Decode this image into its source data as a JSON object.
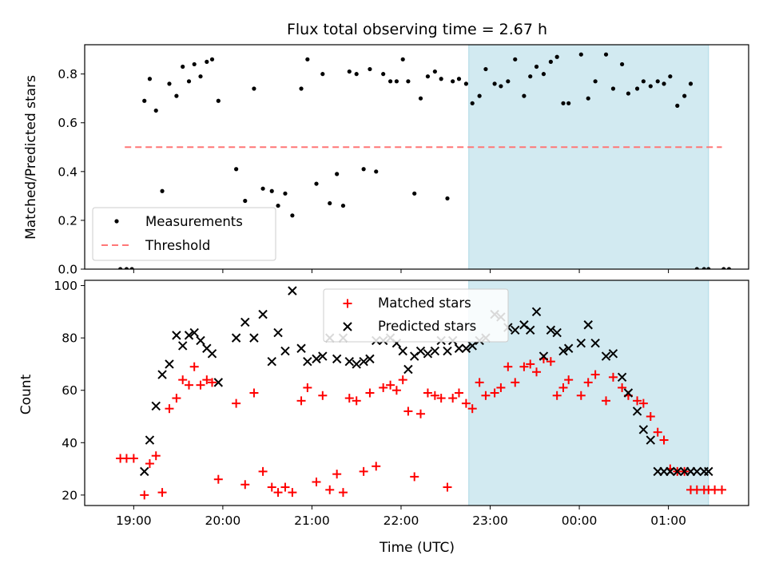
{
  "title": "Flux total observing time = 2.67 h",
  "colors": {
    "measurement": "#000000",
    "threshold": "#ff7777",
    "matched": "#ff0000",
    "predicted": "#000000",
    "span": "#add8e6"
  },
  "chart_data": [
    {
      "type": "scatter",
      "title": "Flux total observing time = 2.67 h",
      "xlabel": "",
      "ylabel": "Matched/Predicted stars",
      "xlim": [
        18.45,
        25.9
      ],
      "ylim": [
        0,
        0.92
      ],
      "yticks": [
        0.0,
        0.2,
        0.4,
        0.6,
        0.8
      ],
      "ytick_labels": [
        "0.0",
        "0.2",
        "0.4",
        "0.6",
        "0.8"
      ],
      "highlight_span": [
        22.76,
        25.45
      ],
      "legend_position": "lower-left",
      "series": [
        {
          "name": "Measurements",
          "marker": "dot",
          "x": [
            18.85,
            18.92,
            18.98,
            19.12,
            19.18,
            19.25,
            19.32,
            19.4,
            19.48,
            19.55,
            19.62,
            19.68,
            19.75,
            19.82,
            19.88,
            19.95,
            20.15,
            20.25,
            20.35,
            20.45,
            20.55,
            20.62,
            20.7,
            20.78,
            20.88,
            20.95,
            21.05,
            21.12,
            21.2,
            21.28,
            21.35,
            21.42,
            21.5,
            21.58,
            21.65,
            21.72,
            21.8,
            21.88,
            21.95,
            22.02,
            22.08,
            22.15,
            22.22,
            22.3,
            22.38,
            22.45,
            22.52,
            22.58,
            22.65,
            22.73,
            22.8,
            22.88,
            22.95,
            23.05,
            23.12,
            23.2,
            23.28,
            23.38,
            23.45,
            23.52,
            23.6,
            23.68,
            23.75,
            23.82,
            23.88,
            24.02,
            24.1,
            24.18,
            24.3,
            24.38,
            24.48,
            24.55,
            24.65,
            24.72,
            24.8,
            24.88,
            24.95,
            25.02,
            25.1,
            25.18,
            25.25,
            25.32,
            25.4,
            25.45,
            25.62,
            25.68
          ],
          "y": [
            0.0,
            0.0,
            0.0,
            0.69,
            0.78,
            0.65,
            0.32,
            0.76,
            0.71,
            0.83,
            0.77,
            0.84,
            0.79,
            0.85,
            0.86,
            0.69,
            0.41,
            0.28,
            0.74,
            0.33,
            0.32,
            0.26,
            0.31,
            0.22,
            0.74,
            0.86,
            0.35,
            0.8,
            0.27,
            0.39,
            0.26,
            0.81,
            0.8,
            0.41,
            0.82,
            0.4,
            0.8,
            0.77,
            0.77,
            0.86,
            0.77,
            0.31,
            0.7,
            0.79,
            0.81,
            0.78,
            0.29,
            0.77,
            0.78,
            0.76,
            0.68,
            0.71,
            0.82,
            0.76,
            0.75,
            0.77,
            0.86,
            0.71,
            0.79,
            0.83,
            0.8,
            0.85,
            0.87,
            0.68,
            0.68,
            0.88,
            0.7,
            0.77,
            0.88,
            0.74,
            0.84,
            0.72,
            0.74,
            0.77,
            0.75,
            0.77,
            0.76,
            0.79,
            0.67,
            0.71,
            0.76,
            0.0,
            0.0,
            0.0,
            0.0,
            0.0
          ]
        },
        {
          "name": "Threshold",
          "style": "dashed",
          "x": [
            18.9,
            25.6
          ],
          "y": [
            0.5,
            0.5
          ]
        }
      ]
    },
    {
      "type": "scatter",
      "xlabel": "Time (UTC)",
      "ylabel": "Count",
      "xlim": [
        18.45,
        25.9
      ],
      "ylim": [
        16,
        102
      ],
      "xticks": [
        19,
        20,
        21,
        22,
        23,
        24,
        25
      ],
      "xtick_labels": [
        "19:00",
        "20:00",
        "21:00",
        "22:00",
        "23:00",
        "00:00",
        "01:00"
      ],
      "yticks": [
        20,
        40,
        60,
        80,
        100
      ],
      "ytick_labels": [
        "20",
        "40",
        "60",
        "80",
        "100"
      ],
      "highlight_span": [
        22.76,
        25.45
      ],
      "legend_position": "upper-center",
      "series": [
        {
          "name": "Matched stars",
          "marker": "plus",
          "x": [
            18.85,
            18.92,
            19.0,
            19.12,
            19.18,
            19.25,
            19.32,
            19.4,
            19.48,
            19.55,
            19.62,
            19.68,
            19.75,
            19.82,
            19.88,
            19.95,
            20.15,
            20.25,
            20.35,
            20.45,
            20.55,
            20.62,
            20.7,
            20.78,
            20.88,
            20.95,
            21.05,
            21.12,
            21.2,
            21.28,
            21.35,
            21.42,
            21.5,
            21.58,
            21.65,
            21.72,
            21.8,
            21.88,
            21.95,
            22.02,
            22.08,
            22.15,
            22.22,
            22.3,
            22.38,
            22.45,
            22.52,
            22.58,
            22.65,
            22.73,
            22.8,
            22.88,
            22.95,
            23.05,
            23.12,
            23.2,
            23.28,
            23.38,
            23.45,
            23.52,
            23.6,
            23.68,
            23.75,
            23.82,
            23.88,
            24.02,
            24.1,
            24.18,
            24.3,
            24.38,
            24.48,
            24.55,
            24.65,
            24.72,
            24.8,
            24.88,
            24.95,
            25.02,
            25.1,
            25.18,
            25.25,
            25.32,
            25.4,
            25.45,
            25.52,
            25.6
          ],
          "y": [
            34,
            34,
            34,
            20,
            32,
            35,
            21,
            53,
            57,
            64,
            62,
            69,
            62,
            64,
            63,
            26,
            55,
            24,
            59,
            29,
            23,
            21,
            23,
            21,
            56,
            61,
            25,
            58,
            22,
            28,
            21,
            57,
            56,
            29,
            59,
            31,
            61,
            62,
            60,
            64,
            52,
            27,
            51,
            59,
            58,
            57,
            23,
            57,
            59,
            55,
            53,
            63,
            58,
            59,
            61,
            69,
            63,
            69,
            70,
            67,
            72,
            71,
            58,
            61,
            64,
            58,
            63,
            66,
            56,
            65,
            61,
            58,
            56,
            55,
            50,
            44,
            41,
            30,
            29,
            29,
            22,
            22,
            22,
            22,
            22,
            22
          ]
        },
        {
          "name": "Predicted stars",
          "marker": "x",
          "x": [
            19.12,
            19.18,
            19.25,
            19.32,
            19.4,
            19.48,
            19.55,
            19.62,
            19.68,
            19.75,
            19.82,
            19.88,
            19.95,
            20.15,
            20.25,
            20.35,
            20.45,
            20.55,
            20.62,
            20.7,
            20.78,
            20.88,
            20.95,
            21.05,
            21.12,
            21.2,
            21.28,
            21.35,
            21.42,
            21.5,
            21.58,
            21.65,
            21.72,
            21.8,
            21.88,
            21.95,
            22.02,
            22.08,
            22.15,
            22.22,
            22.3,
            22.38,
            22.45,
            22.52,
            22.58,
            22.65,
            22.73,
            22.8,
            22.88,
            22.95,
            23.05,
            23.12,
            23.2,
            23.28,
            23.38,
            23.45,
            23.52,
            23.6,
            23.68,
            23.75,
            23.82,
            23.88,
            24.02,
            24.1,
            24.18,
            24.3,
            24.38,
            24.48,
            24.55,
            24.65,
            24.72,
            24.8,
            24.88,
            24.95,
            25.02,
            25.1,
            25.18,
            25.25,
            25.32,
            25.4,
            25.45
          ],
          "y": [
            29,
            41,
            54,
            66,
            70,
            81,
            77,
            81,
            82,
            79,
            76,
            74,
            63,
            80,
            86,
            80,
            89,
            71,
            82,
            75,
            98,
            76,
            71,
            72,
            73,
            80,
            72,
            80,
            71,
            70,
            71,
            72,
            79,
            79,
            80,
            78,
            75,
            68,
            73,
            75,
            74,
            75,
            79,
            75,
            79,
            76,
            76,
            77,
            79,
            80,
            89,
            88,
            84,
            83,
            85,
            83,
            90,
            73,
            83,
            82,
            75,
            76,
            78,
            85,
            78,
            73,
            74,
            65,
            59,
            52,
            45,
            41,
            29,
            29,
            29,
            29,
            29,
            29,
            29,
            29,
            29
          ]
        }
      ]
    }
  ]
}
